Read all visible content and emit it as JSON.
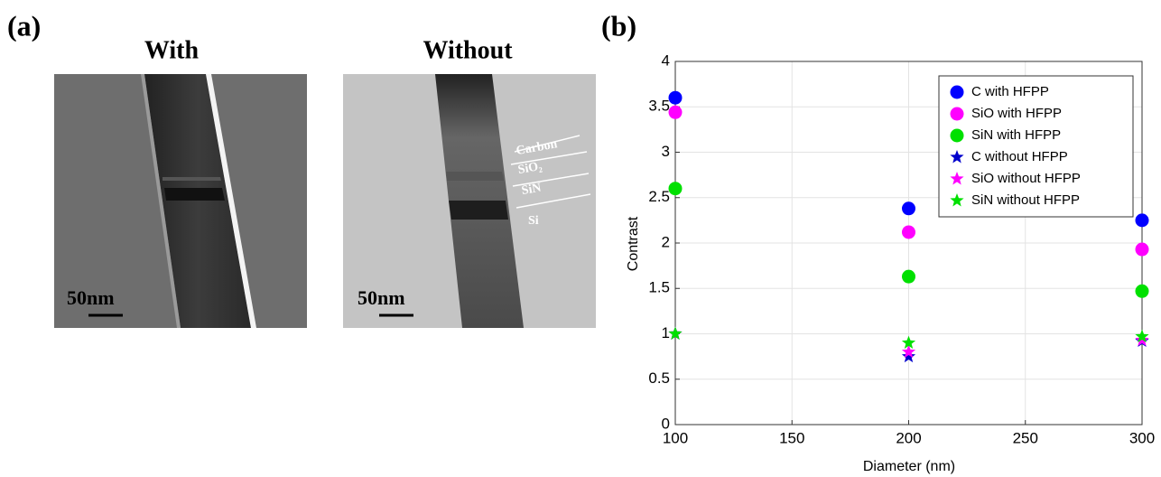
{
  "panel_labels": [
    "(a)",
    "(b)"
  ],
  "panel_a": {
    "images": [
      {
        "title": "With",
        "scale_bar": "50nm"
      },
      {
        "title": "Without",
        "scale_bar": "50nm",
        "layers": [
          "Carbon",
          "SiO₂",
          "SiN",
          "Si"
        ]
      }
    ]
  },
  "chart_data": {
    "type": "scatter",
    "x_label": "Diameter (nm)",
    "y_label": "Contrast",
    "x": [
      100,
      200,
      300
    ],
    "series": [
      {
        "name": "C with HFPP",
        "color": "#0000ff",
        "marker": "circle",
        "values": [
          3.6,
          2.38,
          2.25
        ]
      },
      {
        "name": "SiO with HFPP",
        "color": "#ff00ff",
        "marker": "circle",
        "values": [
          3.44,
          2.12,
          1.93
        ]
      },
      {
        "name": "SiN with HFPP",
        "color": "#00e000",
        "marker": "circle",
        "values": [
          2.6,
          1.63,
          1.47
        ]
      },
      {
        "name": "C without HFPP",
        "color": "#0000cc",
        "marker": "star",
        "values": [
          1.0,
          0.75,
          0.92
        ]
      },
      {
        "name": "SiO without HFPP",
        "color": "#ff00ff",
        "marker": "star",
        "values": [
          1.0,
          0.8,
          0.93
        ]
      },
      {
        "name": "SiN without HFPP",
        "color": "#00e000",
        "marker": "star",
        "values": [
          1.0,
          0.9,
          0.97
        ]
      }
    ],
    "xlim": [
      100,
      300
    ],
    "xticks": [
      100,
      150,
      200,
      250,
      300
    ],
    "ylim": [
      0,
      4
    ],
    "yticks": [
      0,
      0.5,
      1,
      1.5,
      2,
      2.5,
      3,
      3.5,
      4
    ],
    "grid": true,
    "legend": "upper right"
  }
}
